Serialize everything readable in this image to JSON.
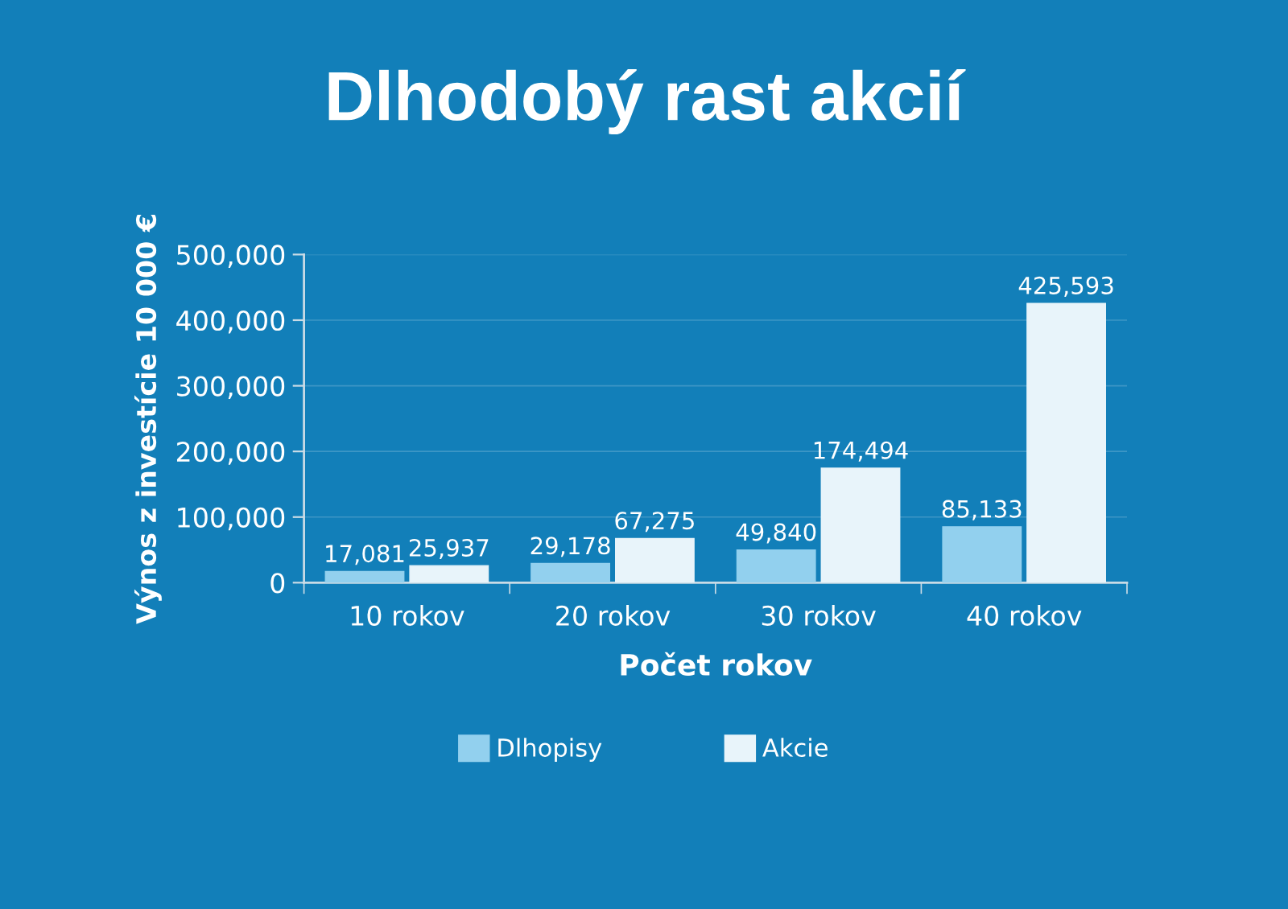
{
  "chart_data": {
    "type": "bar",
    "title": "Dlhodobý rast akcií",
    "xlabel": "Počet rokov",
    "ylabel": "Výnos z investície 10 000 €",
    "categories": [
      "10 rokov",
      "20 rokov",
      "30 rokov",
      "40 rokov"
    ],
    "series": [
      {
        "name": "Dlhopisy",
        "color": "#92d0ee",
        "values": [
          17081,
          29178,
          49840,
          85133
        ],
        "value_labels": [
          "17,081",
          "29,178",
          "49,840",
          "85,133"
        ]
      },
      {
        "name": "Akcie",
        "color": "#e8f4fa",
        "values": [
          25937,
          67275,
          174494,
          425593
        ],
        "value_labels": [
          "25,937",
          "67,275",
          "174,494",
          "425,593"
        ]
      }
    ],
    "ylim": [
      0,
      500000
    ],
    "yticks": [
      0,
      {
        "value": 100000,
        "label": "100,000"
      },
      {
        "value": 200000,
        "label": "200,000"
      },
      {
        "value": 300000,
        "label": "300,000"
      },
      {
        "value": 400000,
        "label": "400,000"
      },
      {
        "value": 500000,
        "label": "500,000"
      }
    ],
    "grid": "y",
    "legend": "bottom"
  }
}
